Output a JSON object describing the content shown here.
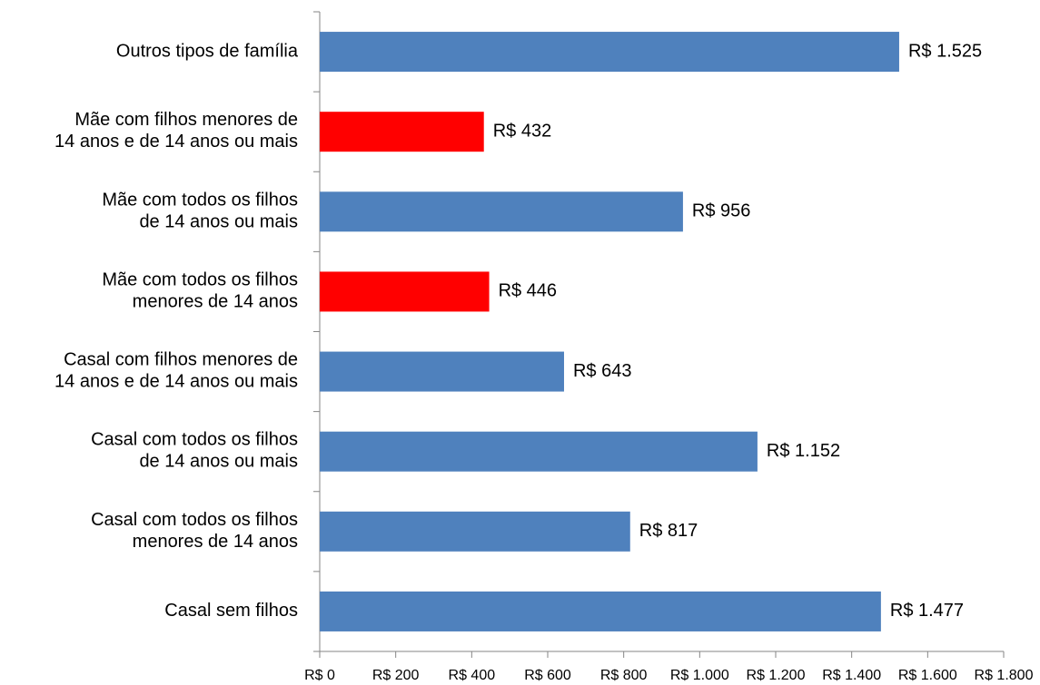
{
  "chart_data": {
    "type": "barh",
    "categories": [
      "Outros tipos de família",
      "Mãe com filhos menores de\n14 anos e de 14 anos ou mais",
      "Mãe com todos os filhos\nde 14 anos ou mais",
      "Mãe com todos os filhos\nmenores de 14 anos",
      "Casal com filhos menores de\n14 anos e de 14 anos ou mais",
      "Casal com todos os filhos\nde 14 anos ou mais",
      "Casal com todos os filhos\nmenores de 14 anos",
      "Casal sem filhos"
    ],
    "values": [
      1525,
      432,
      956,
      446,
      643,
      1152,
      817,
      1477
    ],
    "value_labels": [
      "R$ 1.525",
      "R$ 432",
      "R$ 956",
      "R$ 446",
      "R$ 643",
      "R$ 1.152",
      "R$ 817",
      "R$ 1.477"
    ],
    "colors": [
      "#4f81bd",
      "#ff0000",
      "#4f81bd",
      "#ff0000",
      "#4f81bd",
      "#4f81bd",
      "#4f81bd",
      "#4f81bd"
    ],
    "xlim": [
      0,
      1800
    ],
    "xticks": [
      {
        "value": 0,
        "label": "R$ 0"
      },
      {
        "value": 200,
        "label": "R$ 200"
      },
      {
        "value": 400,
        "label": "R$ 400"
      },
      {
        "value": 600,
        "label": "R$ 600"
      },
      {
        "value": 800,
        "label": "R$ 800"
      },
      {
        "value": 1000,
        "label": "R$ 1.000"
      },
      {
        "value": 1200,
        "label": "R$ 1.200"
      },
      {
        "value": 1400,
        "label": "R$ 1.400"
      },
      {
        "value": 1600,
        "label": "R$ 1.600"
      },
      {
        "value": 1800,
        "label": "R$ 1.800"
      }
    ],
    "grid": false
  }
}
